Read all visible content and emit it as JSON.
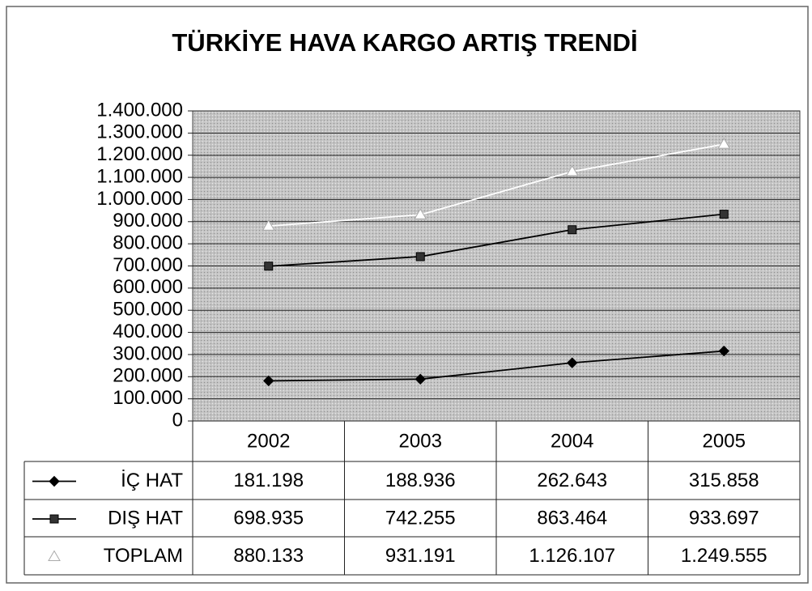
{
  "chart_data": {
    "type": "line",
    "title": "TÜRKİYE HAVA KARGO ARTIŞ TRENDİ",
    "categories": [
      "2002",
      "2003",
      "2004",
      "2005"
    ],
    "series": [
      {
        "name": "İÇ HAT",
        "color": "#000000",
        "marker": "diamond",
        "values": [
          181198,
          188936,
          262643,
          315858
        ],
        "value_labels": [
          "181.198",
          "188.936",
          "262.643",
          "315.858"
        ]
      },
      {
        "name": "DIŞ HAT",
        "color": "#000000",
        "marker": "square",
        "values": [
          698935,
          742255,
          863464,
          933697
        ],
        "value_labels": [
          "698.935",
          "742.255",
          "863.464",
          "933.697"
        ]
      },
      {
        "name": "TOPLAM",
        "color": "#ffffff",
        "marker": "triangle",
        "values": [
          880133,
          931191,
          1126107,
          1249555
        ],
        "value_labels": [
          "880.133",
          "931.191",
          "1.126.107",
          "1.249.555"
        ]
      }
    ],
    "ylim": [
      0,
      1400000
    ],
    "yticks": [
      0,
      {
        "value": 100000,
        "label": "100.000"
      },
      {
        "value": 200000,
        "label": "200.000"
      },
      {
        "value": 300000,
        "label": "300.000"
      },
      {
        "value": 400000,
        "label": "400.000"
      },
      {
        "value": 500000,
        "label": "500.000"
      },
      {
        "value": 600000,
        "label": "600.000"
      },
      {
        "value": 700000,
        "label": "700.000"
      },
      {
        "value": 800000,
        "label": "800.000"
      },
      {
        "value": 900000,
        "label": "900.000"
      },
      {
        "value": 1000000,
        "label": "1.000.000"
      },
      {
        "value": 1100000,
        "label": "1.100.000"
      },
      {
        "value": 1200000,
        "label": "1.200.000"
      },
      {
        "value": 1300000,
        "label": "1.300.000"
      },
      {
        "value": 1400000,
        "label": "1.400.000"
      }
    ],
    "grid": true
  }
}
